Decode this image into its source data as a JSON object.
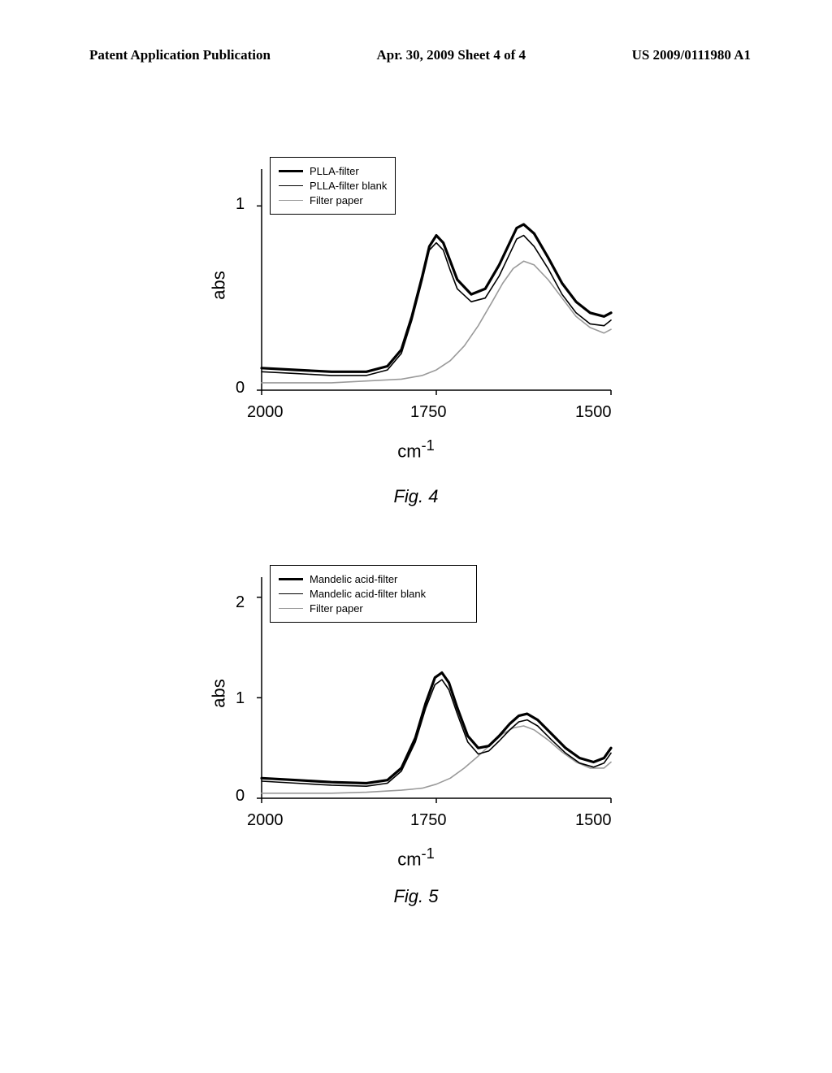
{
  "header": {
    "left": "Patent Application Publication",
    "center": "Apr. 30, 2009  Sheet 4 of 4",
    "right": "US 2009/0111980 A1"
  },
  "fig4": {
    "type": "line",
    "caption": "Fig. 4",
    "ylabel": "abs",
    "xlabel": "cm",
    "xlabel_sup": "-1",
    "xlim": [
      2000,
      1500
    ],
    "ylim": [
      0,
      1.2
    ],
    "yticks": [
      0,
      1
    ],
    "xticks": [
      2000,
      1750,
      1500
    ],
    "legend": [
      {
        "label": "PLLA-filter",
        "style": "solid-black"
      },
      {
        "label": "PLLA-filter blank",
        "style": "thin-black"
      },
      {
        "label": "Filter paper",
        "style": "grey"
      }
    ],
    "series_solid": [
      [
        2000,
        0.12
      ],
      [
        1950,
        0.11
      ],
      [
        1900,
        0.1
      ],
      [
        1850,
        0.1
      ],
      [
        1820,
        0.13
      ],
      [
        1800,
        0.22
      ],
      [
        1785,
        0.4
      ],
      [
        1770,
        0.62
      ],
      [
        1760,
        0.78
      ],
      [
        1750,
        0.84
      ],
      [
        1740,
        0.8
      ],
      [
        1730,
        0.7
      ],
      [
        1720,
        0.6
      ],
      [
        1700,
        0.52
      ],
      [
        1680,
        0.55
      ],
      [
        1660,
        0.68
      ],
      [
        1645,
        0.8
      ],
      [
        1635,
        0.88
      ],
      [
        1625,
        0.9
      ],
      [
        1610,
        0.85
      ],
      [
        1590,
        0.72
      ],
      [
        1570,
        0.58
      ],
      [
        1550,
        0.48
      ],
      [
        1530,
        0.42
      ],
      [
        1510,
        0.4
      ],
      [
        1500,
        0.42
      ]
    ],
    "series_thin": [
      [
        2000,
        0.1
      ],
      [
        1950,
        0.09
      ],
      [
        1900,
        0.08
      ],
      [
        1850,
        0.08
      ],
      [
        1820,
        0.11
      ],
      [
        1800,
        0.2
      ],
      [
        1785,
        0.38
      ],
      [
        1770,
        0.6
      ],
      [
        1760,
        0.76
      ],
      [
        1750,
        0.8
      ],
      [
        1740,
        0.76
      ],
      [
        1730,
        0.65
      ],
      [
        1720,
        0.55
      ],
      [
        1700,
        0.48
      ],
      [
        1680,
        0.5
      ],
      [
        1660,
        0.62
      ],
      [
        1645,
        0.74
      ],
      [
        1635,
        0.82
      ],
      [
        1625,
        0.84
      ],
      [
        1610,
        0.78
      ],
      [
        1590,
        0.66
      ],
      [
        1570,
        0.52
      ],
      [
        1550,
        0.42
      ],
      [
        1530,
        0.36
      ],
      [
        1510,
        0.35
      ],
      [
        1500,
        0.38
      ]
    ],
    "series_grey": [
      [
        2000,
        0.04
      ],
      [
        1950,
        0.04
      ],
      [
        1900,
        0.04
      ],
      [
        1850,
        0.05
      ],
      [
        1800,
        0.06
      ],
      [
        1770,
        0.08
      ],
      [
        1750,
        0.11
      ],
      [
        1730,
        0.16
      ],
      [
        1710,
        0.24
      ],
      [
        1690,
        0.35
      ],
      [
        1670,
        0.48
      ],
      [
        1655,
        0.58
      ],
      [
        1640,
        0.66
      ],
      [
        1625,
        0.7
      ],
      [
        1610,
        0.68
      ],
      [
        1590,
        0.6
      ],
      [
        1570,
        0.5
      ],
      [
        1550,
        0.4
      ],
      [
        1530,
        0.34
      ],
      [
        1510,
        0.31
      ],
      [
        1500,
        0.33
      ]
    ],
    "axis_color": "#000000",
    "bg_color": "#ffffff"
  },
  "fig5": {
    "type": "line",
    "caption": "Fig. 5",
    "ylabel": "abs",
    "xlabel": "cm",
    "xlabel_sup": "-1",
    "xlim": [
      2000,
      1500
    ],
    "ylim": [
      0,
      2.2
    ],
    "yticks": [
      0,
      1,
      2
    ],
    "xticks": [
      2000,
      1750,
      1500
    ],
    "legend": [
      {
        "label": "Mandelic acid-filter",
        "style": "solid-black"
      },
      {
        "label": "Mandelic acid-filter blank",
        "style": "thin-black"
      },
      {
        "label": "Filter paper",
        "style": "grey"
      }
    ],
    "series_solid": [
      [
        2000,
        0.2
      ],
      [
        1950,
        0.18
      ],
      [
        1900,
        0.16
      ],
      [
        1850,
        0.15
      ],
      [
        1820,
        0.18
      ],
      [
        1800,
        0.3
      ],
      [
        1780,
        0.6
      ],
      [
        1765,
        0.95
      ],
      [
        1752,
        1.2
      ],
      [
        1742,
        1.25
      ],
      [
        1732,
        1.15
      ],
      [
        1720,
        0.9
      ],
      [
        1705,
        0.62
      ],
      [
        1690,
        0.5
      ],
      [
        1675,
        0.52
      ],
      [
        1660,
        0.62
      ],
      [
        1645,
        0.74
      ],
      [
        1632,
        0.82
      ],
      [
        1620,
        0.84
      ],
      [
        1605,
        0.78
      ],
      [
        1585,
        0.64
      ],
      [
        1565,
        0.5
      ],
      [
        1545,
        0.4
      ],
      [
        1525,
        0.36
      ],
      [
        1510,
        0.4
      ],
      [
        1500,
        0.5
      ]
    ],
    "series_thin": [
      [
        2000,
        0.17
      ],
      [
        1950,
        0.15
      ],
      [
        1900,
        0.13
      ],
      [
        1850,
        0.12
      ],
      [
        1820,
        0.15
      ],
      [
        1800,
        0.27
      ],
      [
        1780,
        0.56
      ],
      [
        1765,
        0.9
      ],
      [
        1752,
        1.13
      ],
      [
        1742,
        1.18
      ],
      [
        1732,
        1.08
      ],
      [
        1720,
        0.84
      ],
      [
        1705,
        0.56
      ],
      [
        1690,
        0.44
      ],
      [
        1675,
        0.47
      ],
      [
        1660,
        0.57
      ],
      [
        1645,
        0.68
      ],
      [
        1632,
        0.76
      ],
      [
        1620,
        0.78
      ],
      [
        1605,
        0.72
      ],
      [
        1585,
        0.58
      ],
      [
        1565,
        0.45
      ],
      [
        1545,
        0.35
      ],
      [
        1525,
        0.31
      ],
      [
        1510,
        0.35
      ],
      [
        1500,
        0.45
      ]
    ],
    "series_grey": [
      [
        2000,
        0.05
      ],
      [
        1950,
        0.05
      ],
      [
        1900,
        0.05
      ],
      [
        1850,
        0.06
      ],
      [
        1800,
        0.08
      ],
      [
        1770,
        0.1
      ],
      [
        1750,
        0.14
      ],
      [
        1730,
        0.2
      ],
      [
        1710,
        0.3
      ],
      [
        1690,
        0.42
      ],
      [
        1670,
        0.55
      ],
      [
        1655,
        0.64
      ],
      [
        1640,
        0.7
      ],
      [
        1625,
        0.72
      ],
      [
        1610,
        0.68
      ],
      [
        1590,
        0.58
      ],
      [
        1570,
        0.46
      ],
      [
        1550,
        0.36
      ],
      [
        1530,
        0.3
      ],
      [
        1510,
        0.3
      ],
      [
        1500,
        0.36
      ]
    ],
    "axis_color": "#000000",
    "bg_color": "#ffffff"
  }
}
